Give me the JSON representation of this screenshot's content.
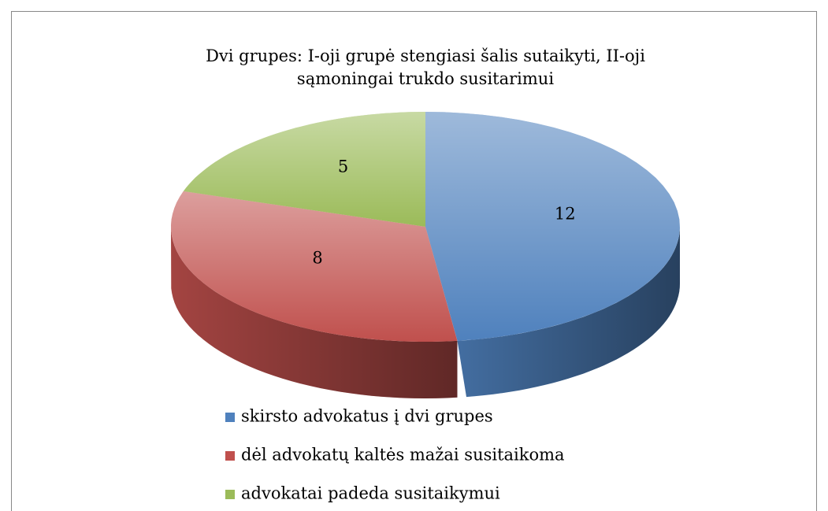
{
  "chart_data": {
    "type": "pie",
    "title": "Dvi grupes: I-oji grupė stengiasi šalis sutaikyti, II-oji sąmoningai trukdo susitarimui",
    "categories": [
      "skirsto advokatus į dvi grupes",
      "dėl advokatų kaltės mažai susitaikoma",
      "advokatai padeda susitaikymui"
    ],
    "values": [
      12,
      8,
      5
    ],
    "colors": [
      "#4f81bd",
      "#c0504d",
      "#9bbb59"
    ],
    "legend": "bottom"
  }
}
